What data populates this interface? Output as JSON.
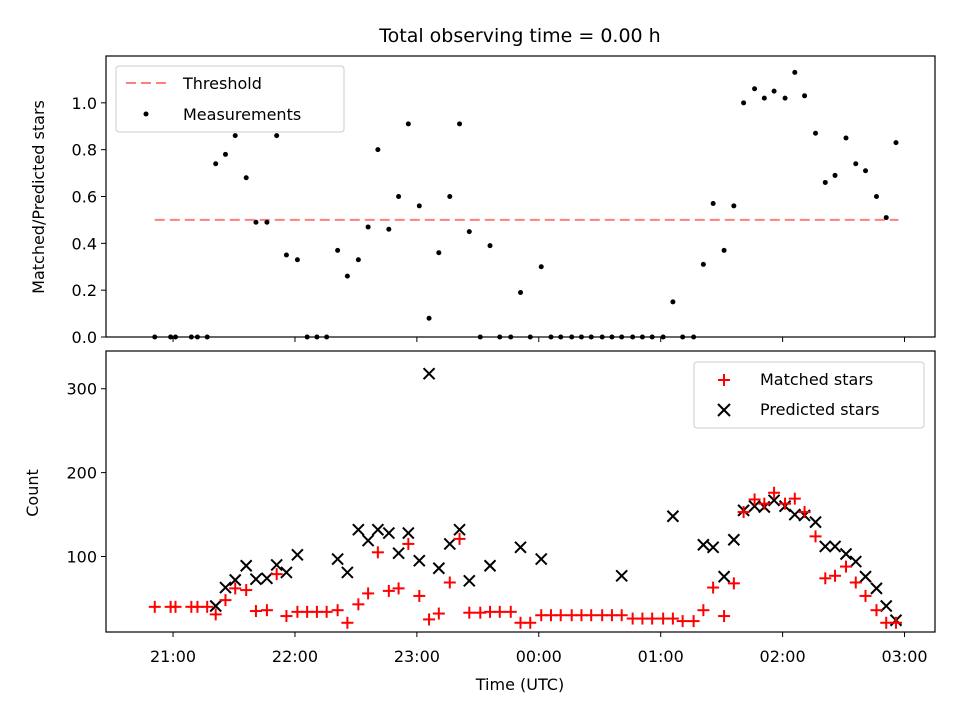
{
  "chart_data": {
    "title": "Total observing time = 0.00 h",
    "xlabel": "Time (UTC)",
    "x_unit": "hours UTC (values >= 24 are after midnight)",
    "xlim": [
      20.45,
      27.25
    ],
    "x_ticks": [
      {
        "value": 21,
        "label": "21:00"
      },
      {
        "value": 22,
        "label": "22:00"
      },
      {
        "value": 23,
        "label": "23:00"
      },
      {
        "value": 24,
        "label": "00:00"
      },
      {
        "value": 25,
        "label": "01:00"
      },
      {
        "value": 26,
        "label": "02:00"
      },
      {
        "value": 27,
        "label": "03:00"
      }
    ],
    "top": {
      "type": "scatter",
      "ylabel": "Matched/Predicted stars",
      "ylim": [
        0,
        1.2
      ],
      "y_ticks": [
        {
          "value": 0,
          "label": "0.0"
        },
        {
          "value": 0.2,
          "label": "0.2"
        },
        {
          "value": 0.4,
          "label": "0.4"
        },
        {
          "value": 0.6,
          "label": "0.6"
        },
        {
          "value": 0.8,
          "label": "0.8"
        },
        {
          "value": 1.0,
          "label": "1.0"
        }
      ],
      "legend": {
        "position": "upper-left",
        "threshold_label": "Threshold",
        "measurements_label": "Measurements"
      },
      "threshold": {
        "value": 0.5,
        "x_range": [
          20.85,
          26.95
        ],
        "color": "#ff7f7f"
      },
      "points": [
        [
          20.85,
          0
        ],
        [
          20.98,
          0
        ],
        [
          21.02,
          0
        ],
        [
          21.15,
          0
        ],
        [
          21.2,
          0
        ],
        [
          21.28,
          0
        ],
        [
          21.35,
          0.74
        ],
        [
          21.43,
          0.78
        ],
        [
          21.51,
          0.86
        ],
        [
          21.6,
          0.68
        ],
        [
          21.68,
          0.49
        ],
        [
          21.77,
          0.49
        ],
        [
          21.85,
          0.86
        ],
        [
          21.93,
          0.35
        ],
        [
          22.02,
          0.33
        ],
        [
          22.1,
          0
        ],
        [
          22.18,
          0
        ],
        [
          22.26,
          0
        ],
        [
          22.35,
          0.37
        ],
        [
          22.43,
          0.26
        ],
        [
          22.52,
          0.33
        ],
        [
          22.6,
          0.47
        ],
        [
          22.68,
          0.8
        ],
        [
          22.77,
          0.46
        ],
        [
          22.85,
          0.6
        ],
        [
          22.93,
          0.91
        ],
        [
          23.02,
          0.56
        ],
        [
          23.1,
          0.08
        ],
        [
          23.18,
          0.36
        ],
        [
          23.27,
          0.6
        ],
        [
          23.35,
          0.91
        ],
        [
          23.43,
          0.45
        ],
        [
          23.52,
          0
        ],
        [
          23.6,
          0.39
        ],
        [
          23.68,
          0
        ],
        [
          23.77,
          0
        ],
        [
          23.85,
          0.19
        ],
        [
          23.93,
          0
        ],
        [
          24.02,
          0.3
        ],
        [
          24.1,
          0
        ],
        [
          24.18,
          0
        ],
        [
          24.27,
          0
        ],
        [
          24.35,
          0
        ],
        [
          24.43,
          0
        ],
        [
          24.52,
          0
        ],
        [
          24.6,
          0
        ],
        [
          24.68,
          0
        ],
        [
          24.77,
          0
        ],
        [
          24.85,
          0
        ],
        [
          24.93,
          0
        ],
        [
          25.02,
          0
        ],
        [
          25.1,
          0.15
        ],
        [
          25.18,
          0
        ],
        [
          25.27,
          0
        ],
        [
          25.35,
          0.31
        ],
        [
          25.43,
          0.57
        ],
        [
          25.52,
          0.37
        ],
        [
          25.6,
          0.56
        ],
        [
          25.68,
          1.0
        ],
        [
          25.77,
          1.06
        ],
        [
          25.85,
          1.02
        ],
        [
          25.93,
          1.05
        ],
        [
          26.02,
          1.02
        ],
        [
          26.1,
          1.13
        ],
        [
          26.18,
          1.03
        ],
        [
          26.27,
          0.87
        ],
        [
          26.35,
          0.66
        ],
        [
          26.43,
          0.69
        ],
        [
          26.52,
          0.85
        ],
        [
          26.6,
          0.74
        ],
        [
          26.68,
          0.71
        ],
        [
          26.77,
          0.6
        ],
        [
          26.85,
          0.51
        ],
        [
          26.93,
          0.83
        ]
      ]
    },
    "bottom": {
      "type": "scatter",
      "ylabel": "Count",
      "ylim": [
        10,
        345
      ],
      "y_ticks": [
        {
          "value": 100,
          "label": "100"
        },
        {
          "value": 200,
          "label": "200"
        },
        {
          "value": 300,
          "label": "300"
        }
      ],
      "legend": {
        "position": "upper-right",
        "matched_label": "Matched stars",
        "predicted_label": "Predicted stars"
      },
      "series": [
        {
          "name": "Matched stars",
          "marker": "plus",
          "color": "#ff0000",
          "points": [
            [
              20.85,
              40
            ],
            [
              20.98,
              40
            ],
            [
              21.02,
              40
            ],
            [
              21.15,
              40
            ],
            [
              21.2,
              40
            ],
            [
              21.28,
              40
            ],
            [
              21.35,
              31
            ],
            [
              21.43,
              48
            ],
            [
              21.51,
              62
            ],
            [
              21.6,
              60
            ],
            [
              21.68,
              35
            ],
            [
              21.77,
              36
            ],
            [
              21.85,
              79
            ],
            [
              21.93,
              29
            ],
            [
              22.02,
              34
            ],
            [
              22.1,
              34
            ],
            [
              22.18,
              34
            ],
            [
              22.26,
              34
            ],
            [
              22.35,
              36
            ],
            [
              22.43,
              21
            ],
            [
              22.52,
              43
            ],
            [
              22.6,
              56
            ],
            [
              22.68,
              105
            ],
            [
              22.77,
              59
            ],
            [
              22.85,
              62
            ],
            [
              22.93,
              115
            ],
            [
              23.02,
              53
            ],
            [
              23.1,
              25
            ],
            [
              23.18,
              32
            ],
            [
              23.27,
              69
            ],
            [
              23.35,
              121
            ],
            [
              23.43,
              33
            ],
            [
              23.52,
              33
            ],
            [
              23.6,
              34
            ],
            [
              23.68,
              34
            ],
            [
              23.77,
              34
            ],
            [
              23.85,
              21
            ],
            [
              23.93,
              21
            ],
            [
              24.02,
              30
            ],
            [
              24.1,
              30
            ],
            [
              24.18,
              30
            ],
            [
              24.27,
              30
            ],
            [
              24.35,
              30
            ],
            [
              24.43,
              30
            ],
            [
              24.52,
              30
            ],
            [
              24.6,
              30
            ],
            [
              24.68,
              30
            ],
            [
              24.77,
              26
            ],
            [
              24.85,
              26
            ],
            [
              24.93,
              26
            ],
            [
              25.02,
              26
            ],
            [
              25.1,
              26
            ],
            [
              25.18,
              23
            ],
            [
              25.27,
              23
            ],
            [
              25.35,
              36
            ],
            [
              25.43,
              63
            ],
            [
              25.52,
              29
            ],
            [
              25.6,
              68
            ],
            [
              25.68,
              153
            ],
            [
              25.77,
              168
            ],
            [
              25.85,
              163
            ],
            [
              25.93,
              176
            ],
            [
              26.02,
              163
            ],
            [
              26.1,
              169
            ],
            [
              26.18,
              153
            ],
            [
              26.27,
              124
            ],
            [
              26.35,
              74
            ],
            [
              26.43,
              77
            ],
            [
              26.52,
              88
            ],
            [
              26.6,
              69
            ],
            [
              26.68,
              53
            ],
            [
              26.77,
              36
            ],
            [
              26.85,
              21
            ],
            [
              26.93,
              21
            ]
          ]
        },
        {
          "name": "Predicted stars",
          "marker": "x",
          "color": "#000000",
          "points": [
            [
              21.35,
              41
            ],
            [
              21.43,
              63
            ],
            [
              21.51,
              72
            ],
            [
              21.6,
              89
            ],
            [
              21.68,
              73
            ],
            [
              21.77,
              74
            ],
            [
              21.85,
              90
            ],
            [
              21.93,
              81
            ],
            [
              22.02,
              102
            ],
            [
              22.35,
              97
            ],
            [
              22.43,
              81
            ],
            [
              22.52,
              132
            ],
            [
              22.6,
              119
            ],
            [
              22.68,
              132
            ],
            [
              22.77,
              128
            ],
            [
              22.85,
              104
            ],
            [
              22.93,
              128
            ],
            [
              23.02,
              95
            ],
            [
              23.1,
              318
            ],
            [
              23.18,
              86
            ],
            [
              23.27,
              115
            ],
            [
              23.35,
              132
            ],
            [
              23.43,
              71
            ],
            [
              23.6,
              89
            ],
            [
              23.85,
              111
            ],
            [
              24.02,
              97
            ],
            [
              24.68,
              77
            ],
            [
              25.1,
              148
            ],
            [
              25.35,
              114
            ],
            [
              25.43,
              111
            ],
            [
              25.52,
              76
            ],
            [
              25.6,
              120
            ],
            [
              25.68,
              155
            ],
            [
              25.77,
              160
            ],
            [
              25.85,
              159
            ],
            [
              25.93,
              167
            ],
            [
              26.02,
              160
            ],
            [
              26.1,
              150
            ],
            [
              26.18,
              149
            ],
            [
              26.27,
              141
            ],
            [
              26.35,
              112
            ],
            [
              26.43,
              112
            ],
            [
              26.52,
              103
            ],
            [
              26.6,
              94
            ],
            [
              26.68,
              76
            ],
            [
              26.77,
              62
            ],
            [
              26.85,
              41
            ],
            [
              26.93,
              24
            ]
          ]
        }
      ]
    }
  }
}
